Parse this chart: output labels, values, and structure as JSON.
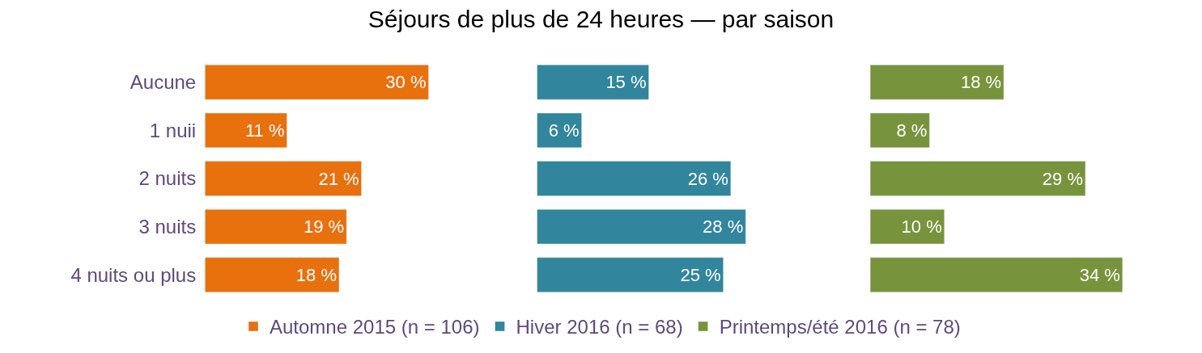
{
  "chart_data": [
    {
      "type": "bar",
      "orientation": "horizontal",
      "title": "Séjours de plus de 24 heures — par saison",
      "categories": [
        "Aucune",
        "1 nuii",
        "2 nuits",
        "3 nuits",
        "4 nuits ou plus"
      ],
      "tick_labels": "y",
      "legend": "bottom",
      "data_labels": true,
      "series": [
        {
          "name": "Automne 2015 (n = 106)",
          "color": "#e8700d",
          "values": [
            30,
            11,
            21,
            19,
            18
          ],
          "value_labels": [
            "30 %",
            "11 %",
            "21 %",
            "19 %",
            "18 %"
          ]
        }
      ]
    },
    {
      "type": "bar",
      "orientation": "horizontal",
      "categories": [
        null,
        null,
        null,
        null,
        null
      ],
      "tick_labels": false,
      "legend": "bottom",
      "data_labels": true,
      "series": [
        {
          "name": "Hiver 2016 (n = 68)",
          "color": "#31859c",
          "values": [
            15,
            6,
            26,
            28,
            25
          ],
          "value_labels": [
            "15 %",
            "6 %",
            "26 %",
            "28 %",
            "25 %"
          ]
        }
      ]
    },
    {
      "type": "bar",
      "orientation": "horizontal",
      "categories": [
        null,
        null,
        null,
        null,
        null
      ],
      "tick_labels": false,
      "legend": "bottom",
      "data_labels": true,
      "series": [
        {
          "name": "Printemps/été 2016 (n = 78)",
          "color": "#77933c",
          "values": [
            18,
            8,
            29,
            10,
            34
          ],
          "value_labels": [
            "18 %",
            "8 %",
            "29 %",
            "10 %",
            "34 %"
          ]
        }
      ]
    }
  ]
}
